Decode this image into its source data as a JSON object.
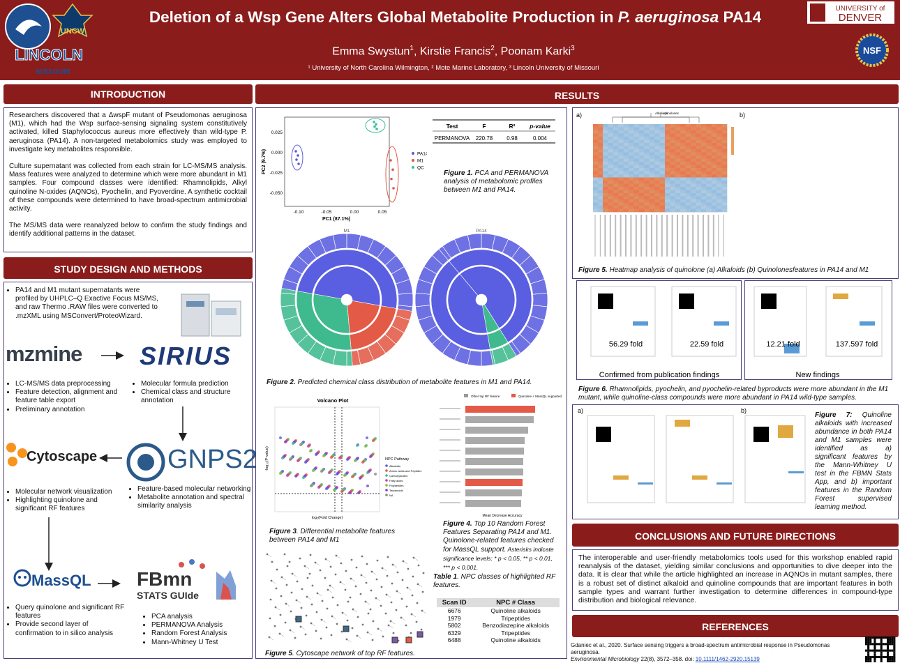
{
  "header": {
    "title_pre": "Deletion of a Wsp Gene Alters Global Metabolite Production in ",
    "title_italic": "P. aeruginosa",
    "title_post": " PA14",
    "authors": [
      {
        "name": "Emma Swystun",
        "sup": "1"
      },
      {
        "name": "Kirstie Francis",
        "sup": "2"
      },
      {
        "name": "Poonam Karki",
        "sup": "3"
      }
    ],
    "affiliations": "¹ University of North Carolina Wilmington, ² Mote Marine Laboratory, ³ Lincoln University of Missouri",
    "logos": {
      "uncw": "UNCW",
      "lincoln": "LINCOLN",
      "missouri": "MISSOURI",
      "denver_top": "UNIVERSITY of",
      "denver": "DENVER",
      "nsf": "NSF"
    }
  },
  "introduction": {
    "heading": "INTRODUCTION",
    "paragraphs": [
      "Researchers discovered that a ΔwspF mutant of Pseudomonas aeruginosa (M1), which had the Wsp surface-sensing signaling system constitutively activated, killed Staphylococcus aureus more effectively than wild-type P. aeruginosa (PA14). A non-targeted metabolomics study was employed to investigate key metabolites responsible.",
      "Culture supernatant was collected from each strain for LC-MS/MS analysis. Mass features were analyzed to determine which were more abundant in M1 samples. Four compound classes were identified: Rhamnolipids, Alkyl quinoline N-oxides (AQNOs), Pyochelin, and Pyoverdine. A synthetic cocktail of these compounds were determined to have broad-spectrum antimicrobial activity.",
      "The MS/MS data were reanalyzed below to confirm the study findings and identify additional patterns in the dataset."
    ]
  },
  "methods": {
    "heading": "STUDY DESIGN AND METHODS",
    "intro_bullets": [
      "PA14 and M1 mutant supernatants were profiled by UHPLC–Q Exactive Focus MS/MS, and raw Thermo .RAW files were converted to .mzXML using MSConvert/ProteoWizard."
    ],
    "tools": {
      "mzmine": "mzmine",
      "sirius": "SIRIUS",
      "cytoscape": "Cytoscape",
      "gnps": "GNPS2",
      "massql": "MassQL",
      "fbmn": "FBmn",
      "fbmn_sub": "STATS GUIde"
    },
    "mzmine_bullets": [
      "LC-MS/MS data preprocessing",
      "Feature detection, alignment and feature table export",
      "Preliminary annotation"
    ],
    "sirius_bullets": [
      "Molecular formula prediction",
      "Chemical class and structure annotation"
    ],
    "cytoscape_bullets": [
      "Molecular network visualization",
      "Highlighting quinolone and significant RF features"
    ],
    "gnps_bullets": [
      "Feature-based molecular networking",
      "Metabolite annotation and spectral similarity analysis"
    ],
    "massql_bullets": [
      "Query quinolone and significant RF features",
      "Provide second layer of confirmation to in silico analysis"
    ],
    "fbmn_bullets": [
      "PCA analysis",
      "PERMANOVA Analysis",
      "Random Forest Analysis",
      "Mann-Whitney U Test"
    ]
  },
  "results": {
    "heading": "RESULTS",
    "pca": {
      "xlabel": "PC1 (87.1%)",
      "ylabel": "PC2 (9.7%)",
      "xticks": [
        "-0.10",
        "-0.05",
        "0.00",
        "0.05"
      ],
      "yticks": [
        "0.025",
        "0.000",
        "-0.025",
        "-0.050"
      ],
      "legend": [
        "PA14",
        "M1",
        "QC"
      ]
    },
    "permanova": {
      "headers": [
        "Test",
        "F",
        "R²",
        "p-value"
      ],
      "row": [
        "PERMANOVA",
        "220.78",
        "0.98",
        "0.004"
      ]
    },
    "fig1_label": "Figure 1.",
    "fig1_caption": " PCA and PERMANOVA analysis of metabolomic profiles between M1 and PA14.",
    "sunburst_titles": [
      "M1",
      "PA14"
    ],
    "fig2_label": "Figure 2.",
    "fig2_caption": " Predicted chemical class distribution of metabolite features in M1 and PA14.",
    "volcano": {
      "title": "Volcano Plot",
      "xlabel": "log₂(Fold Change)",
      "ylabel": "-log₁₀(P-value)",
      "legend_title": "NPC Pathway",
      "legend": [
        "Alkaloids",
        "Amino acids and Peptides",
        "Carbohydrates",
        "Fatty acids",
        "Polyketides",
        "Terpenoids",
        "NA"
      ]
    },
    "fig3_label": "Figure 3",
    "fig3_caption": ". Differential metabolite features between PA14 and M1",
    "rf": {
      "legend": [
        "Other top RF feature",
        "Quinoline + MassQL supported"
      ],
      "xlabel": "Mean Decrease Accuracy"
    },
    "fig4_label": "Figure 4.",
    "fig4_caption": " Top 10 Random Forest Features Separating PA14 and M1. Quinolone-related features checked for MassQL support.",
    "fig4_note": " Asterisks indicate significance levels: * p < 0.05, ** p < 0.01, *** p < 0.001.",
    "table1_label": "Table 1",
    "table1_caption": ". NPC classes of highlighted RF features.",
    "table1": {
      "headers": [
        "Scan ID",
        "NPC # Class"
      ],
      "rows": [
        [
          "6676",
          "Quinoline alkaloids"
        ],
        [
          "1979",
          "Tripeptides"
        ],
        [
          "5802",
          "Benzodiazepine alkaloids"
        ],
        [
          "6329",
          "Tripeptides"
        ],
        [
          "6488",
          "Quinoline alkaloids"
        ]
      ]
    },
    "fig5b_label": "Figure 5",
    "fig5b_caption": ". Cytoscape network of top RF features.",
    "heatmap": {
      "labels": [
        "a)",
        "b)"
      ],
      "titles": [
        "Alkaloids",
        "quinolones"
      ]
    },
    "fig5_label": "Figure 5.",
    "fig5_caption": " Heatmap analysis of quinolone (a) Alkaloids (b) Quinolonesfeatures in PA14 and M1",
    "fig6": {
      "folds": [
        "56.29 fold",
        "22.59 fold",
        "12.21 fold",
        "137.597 fold"
      ],
      "groups": [
        "Confirmed from publication findings",
        "New findings"
      ]
    },
    "fig6_label": "Figure 6.",
    "fig6_caption": " Rhamnolipids, pyochelin, and pyochelin-related byproducts were more abundant in the M1 mutant, while quinoline-class compounds were more abundant in PA14 wild-type samples.",
    "fig7_panels": [
      "a)",
      "b)"
    ],
    "fig7_label": "Figure 7:",
    "fig7_caption": " Quinoline alkaloids with increased abundance in both PA14 and M1 samples were identified as a) significant features by the Mann-Whitney U test in the FBMN Stats App, and b) important features in the Random Forest supervised learning method."
  },
  "conclusions": {
    "heading": "CONCLUSIONS AND FUTURE DIRECTIONS",
    "text": "The interoperable and user-friendly metabolomics tools used for this workshop enabled rapid reanalysis of the dataset, yielding similar conclusions and opportunities to dive deeper into the data. It is clear that while the article highlighted an increase in AQNOs in mutant samples, there is a robust set of distinct alkaloid and quinoline compounds that are important features in both sample types and warrant further investigation to determine differences in compound-type distribution and biological relevance."
  },
  "references": {
    "heading": "REFERENCES",
    "citation": "Gdaniec et al., 2020. Surface sensing triggers a broad-spectrum antimicrobial response in Pseudomonas aeruginosa.",
    "journal": "Environmental Microbiology",
    "details": " 22(8), 3572–358. doi: ",
    "doi": "10.1111/1462-2920.15139"
  }
}
